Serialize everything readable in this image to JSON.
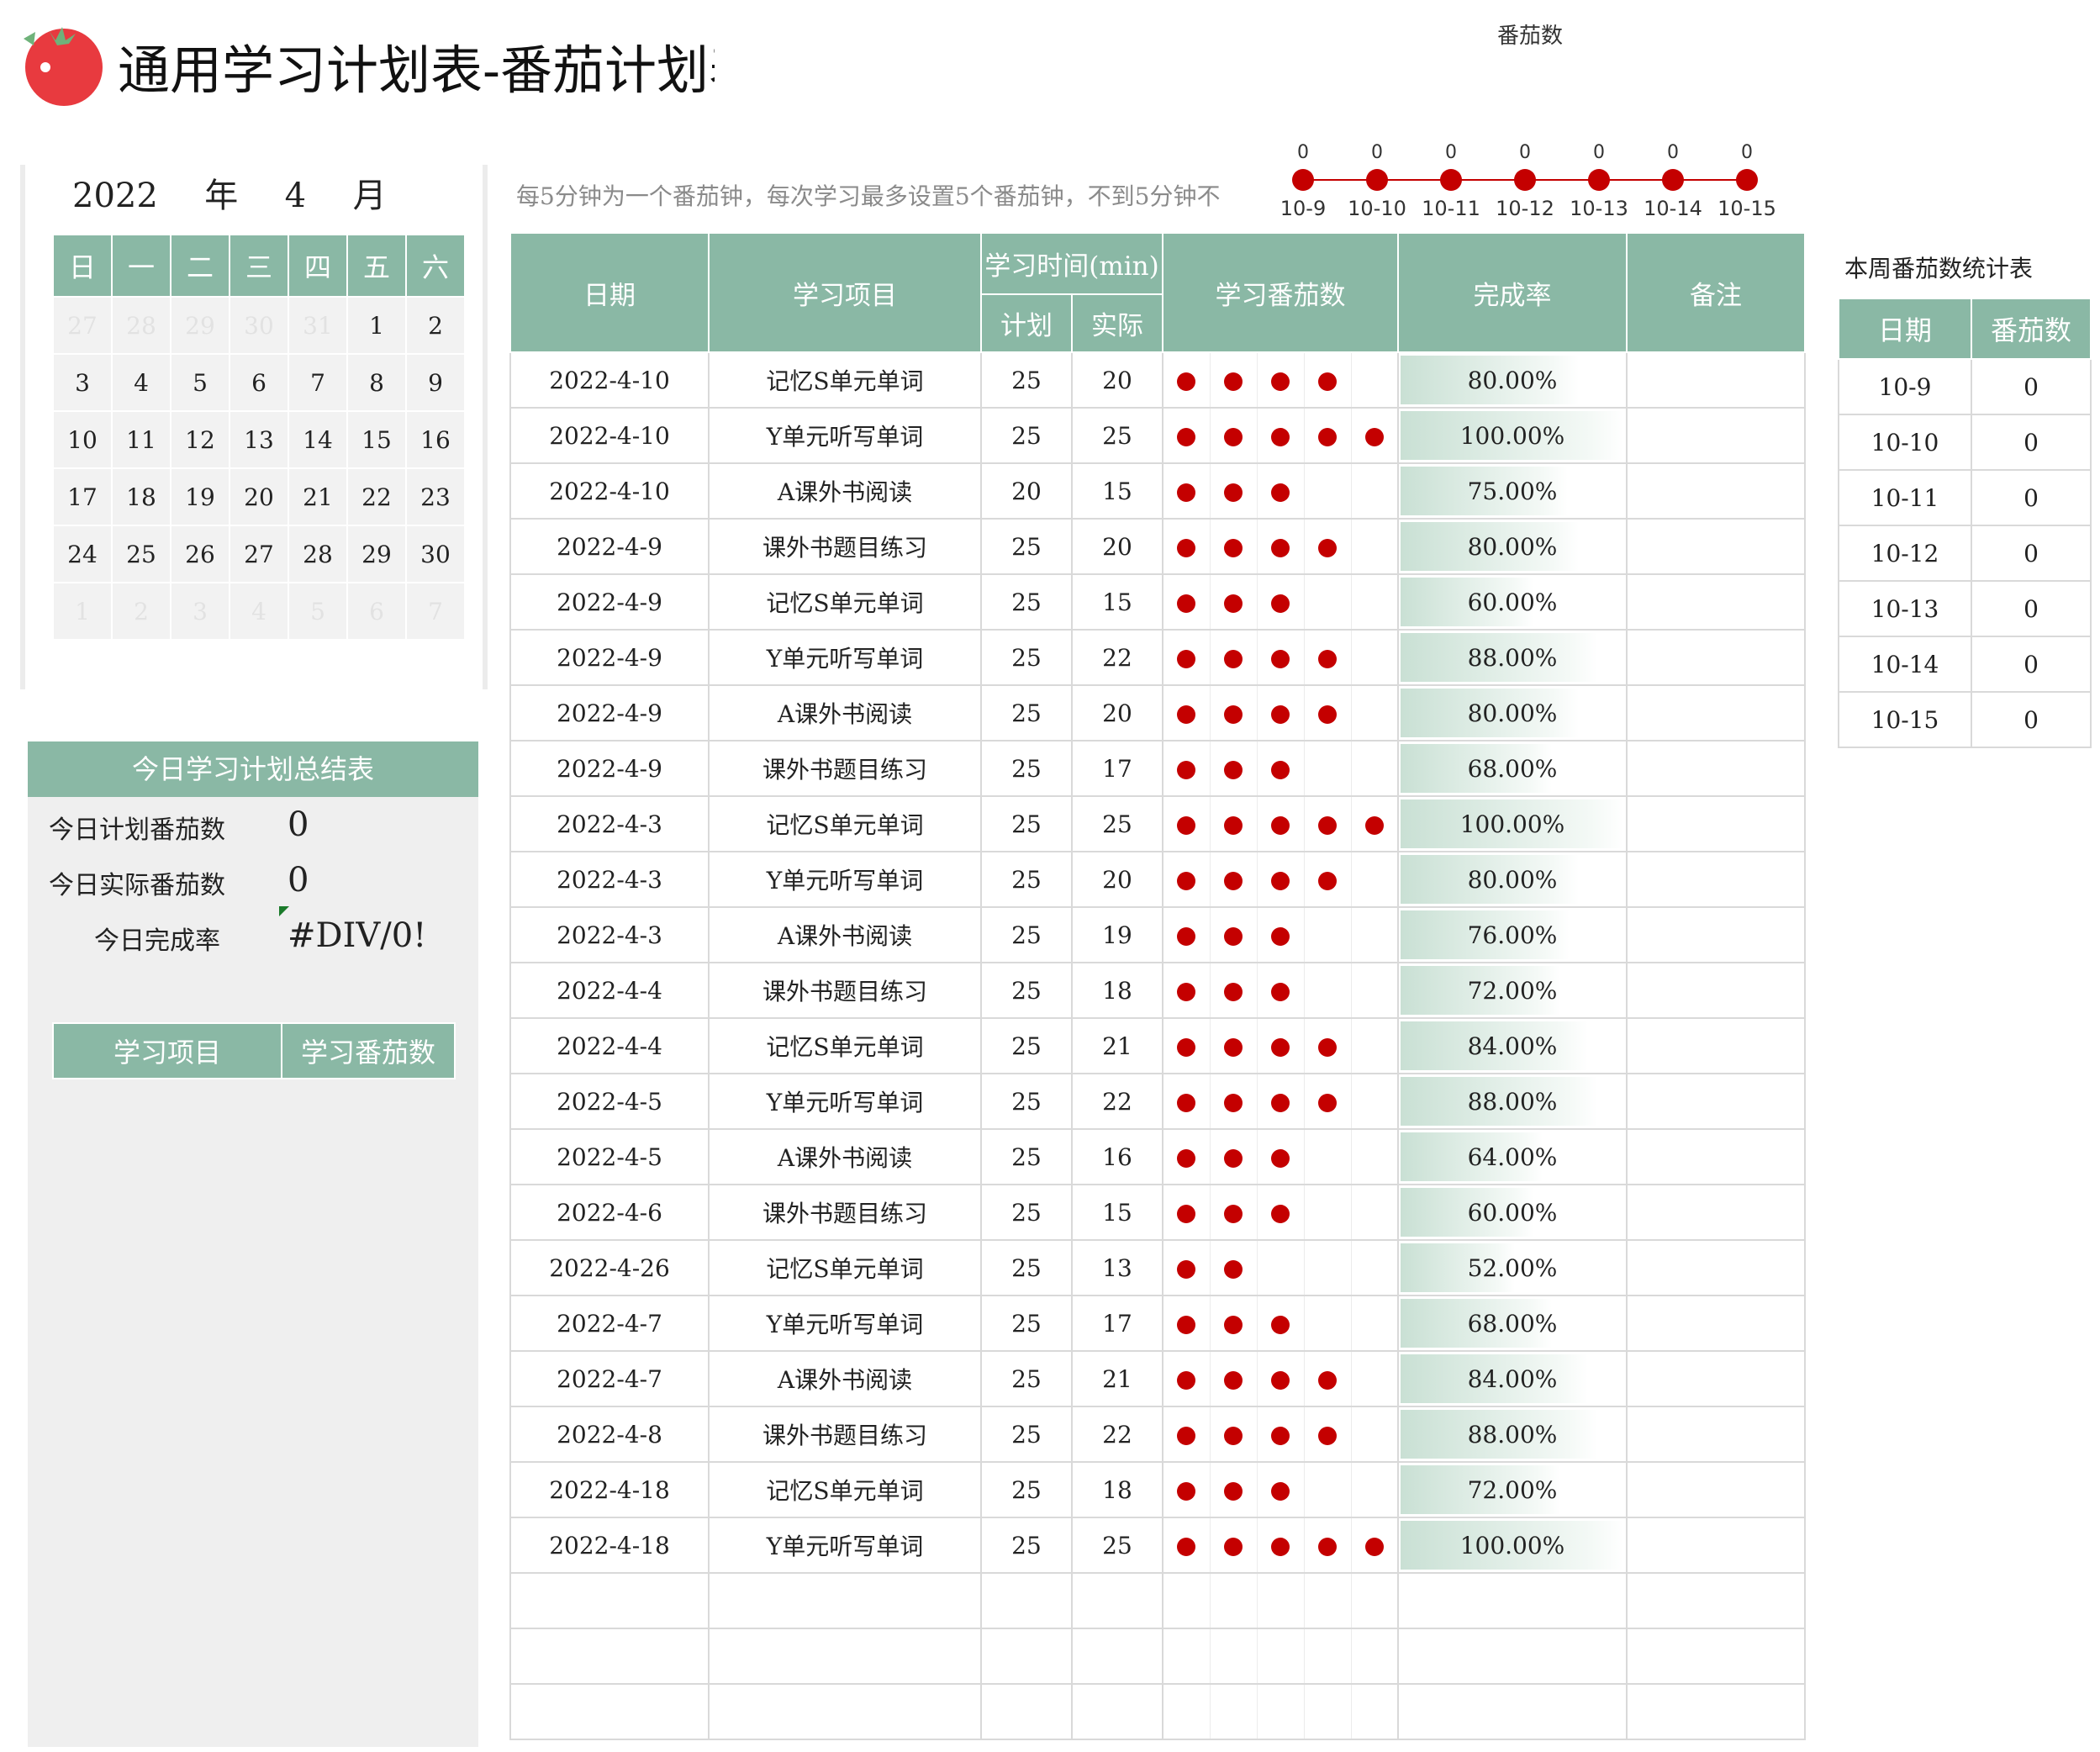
{
  "title": "通用学习计划表-番茄计划表",
  "note": "每5分钟为一个番茄钟，每次学习最多设置5个番茄钟，不到5分钟不",
  "colors": {
    "header_green": "#8ab8a5",
    "tomato_red": "#c40000",
    "logo_red": "#e83a3f",
    "leaf_green": "#6fb27a"
  },
  "chart_data": {
    "type": "line",
    "title": "番茄数",
    "categories": [
      "10-9",
      "10-10",
      "10-11",
      "10-12",
      "10-13",
      "10-14",
      "10-15"
    ],
    "values": [
      0,
      0,
      0,
      0,
      0,
      0,
      0
    ],
    "value_labels": [
      "0",
      "0",
      "0",
      "0",
      "0",
      "0",
      "0"
    ],
    "marker": "filled-circle",
    "axes_visible": false,
    "grid": false
  },
  "calendar": {
    "year": "2022",
    "year_label": "年",
    "month": "4",
    "month_label": "月",
    "weekdays": [
      "日",
      "一",
      "二",
      "三",
      "四",
      "五",
      "六"
    ],
    "weeks": [
      [
        "27",
        "28",
        "29",
        "30",
        "31",
        "1",
        "2"
      ],
      [
        "3",
        "4",
        "5",
        "6",
        "7",
        "8",
        "9"
      ],
      [
        "10",
        "11",
        "12",
        "13",
        "14",
        "15",
        "16"
      ],
      [
        "17",
        "18",
        "19",
        "20",
        "21",
        "22",
        "23"
      ],
      [
        "24",
        "25",
        "26",
        "27",
        "28",
        "29",
        "30"
      ],
      [
        "1",
        "2",
        "3",
        "4",
        "5",
        "6",
        "7"
      ]
    ],
    "dim_cells": [
      [
        0,
        0
      ],
      [
        0,
        1
      ],
      [
        0,
        2
      ],
      [
        0,
        3
      ],
      [
        0,
        4
      ],
      [
        5,
        0
      ],
      [
        5,
        1
      ],
      [
        5,
        2
      ],
      [
        5,
        3
      ],
      [
        5,
        4
      ],
      [
        5,
        5
      ],
      [
        5,
        6
      ]
    ]
  },
  "summary": {
    "title": "今日学习计划总结表",
    "planned_label": "今日计划番茄数",
    "planned_value": "0",
    "actual_label": "今日实际番茄数",
    "actual_value": "0",
    "rate_label": "今日完成率",
    "rate_value": "#DIV/0!",
    "table_headers": [
      "学习项目",
      "学习番茄数"
    ]
  },
  "main_table": {
    "headers": {
      "date": "日期",
      "project": "学习项目",
      "time": "学习时间(min)",
      "plan": "计划",
      "actual": "实际",
      "tomatoes": "学习番茄数",
      "rate": "完成率",
      "remark": "备注"
    },
    "rows": [
      {
        "date": "2022-4-10",
        "project": "记忆S单元单词",
        "plan": "25",
        "actual": "20",
        "tomatoes": 4,
        "rate": "80.00%",
        "rate_value": 0.8
      },
      {
        "date": "2022-4-10",
        "project": "Y单元听写单词",
        "plan": "25",
        "actual": "25",
        "tomatoes": 5,
        "rate": "100.00%",
        "rate_value": 1.0
      },
      {
        "date": "2022-4-10",
        "project": "A课外书阅读",
        "plan": "20",
        "actual": "15",
        "tomatoes": 3,
        "rate": "75.00%",
        "rate_value": 0.75
      },
      {
        "date": "2022-4-9",
        "project": "课外书题目练习",
        "plan": "25",
        "actual": "20",
        "tomatoes": 4,
        "rate": "80.00%",
        "rate_value": 0.8
      },
      {
        "date": "2022-4-9",
        "project": "记忆S单元单词",
        "plan": "25",
        "actual": "15",
        "tomatoes": 3,
        "rate": "60.00%",
        "rate_value": 0.6
      },
      {
        "date": "2022-4-9",
        "project": "Y单元听写单词",
        "plan": "25",
        "actual": "22",
        "tomatoes": 4,
        "rate": "88.00%",
        "rate_value": 0.88
      },
      {
        "date": "2022-4-9",
        "project": "A课外书阅读",
        "plan": "25",
        "actual": "20",
        "tomatoes": 4,
        "rate": "80.00%",
        "rate_value": 0.8
      },
      {
        "date": "2022-4-9",
        "project": "课外书题目练习",
        "plan": "25",
        "actual": "17",
        "tomatoes": 3,
        "rate": "68.00%",
        "rate_value": 0.68
      },
      {
        "date": "2022-4-3",
        "project": "记忆S单元单词",
        "plan": "25",
        "actual": "25",
        "tomatoes": 5,
        "rate": "100.00%",
        "rate_value": 1.0
      },
      {
        "date": "2022-4-3",
        "project": "Y单元听写单词",
        "plan": "25",
        "actual": "20",
        "tomatoes": 4,
        "rate": "80.00%",
        "rate_value": 0.8
      },
      {
        "date": "2022-4-3",
        "project": "A课外书阅读",
        "plan": "25",
        "actual": "19",
        "tomatoes": 3,
        "rate": "76.00%",
        "rate_value": 0.76
      },
      {
        "date": "2022-4-4",
        "project": "课外书题目练习",
        "plan": "25",
        "actual": "18",
        "tomatoes": 3,
        "rate": "72.00%",
        "rate_value": 0.72
      },
      {
        "date": "2022-4-4",
        "project": "记忆S单元单词",
        "plan": "25",
        "actual": "21",
        "tomatoes": 4,
        "rate": "84.00%",
        "rate_value": 0.84
      },
      {
        "date": "2022-4-5",
        "project": "Y单元听写单词",
        "plan": "25",
        "actual": "22",
        "tomatoes": 4,
        "rate": "88.00%",
        "rate_value": 0.88
      },
      {
        "date": "2022-4-5",
        "project": "A课外书阅读",
        "plan": "25",
        "actual": "16",
        "tomatoes": 3,
        "rate": "64.00%",
        "rate_value": 0.64
      },
      {
        "date": "2022-4-6",
        "project": "课外书题目练习",
        "plan": "25",
        "actual": "15",
        "tomatoes": 3,
        "rate": "60.00%",
        "rate_value": 0.6
      },
      {
        "date": "2022-4-26",
        "project": "记忆S单元单词",
        "plan": "25",
        "actual": "13",
        "tomatoes": 2,
        "rate": "52.00%",
        "rate_value": 0.52
      },
      {
        "date": "2022-4-7",
        "project": "Y单元听写单词",
        "plan": "25",
        "actual": "17",
        "tomatoes": 3,
        "rate": "68.00%",
        "rate_value": 0.68
      },
      {
        "date": "2022-4-7",
        "project": "A课外书阅读",
        "plan": "25",
        "actual": "21",
        "tomatoes": 4,
        "rate": "84.00%",
        "rate_value": 0.84
      },
      {
        "date": "2022-4-8",
        "project": "课外书题目练习",
        "plan": "25",
        "actual": "22",
        "tomatoes": 4,
        "rate": "88.00%",
        "rate_value": 0.88
      },
      {
        "date": "2022-4-18",
        "project": "记忆S单元单词",
        "plan": "25",
        "actual": "18",
        "tomatoes": 3,
        "rate": "72.00%",
        "rate_value": 0.72
      },
      {
        "date": "2022-4-18",
        "project": "Y单元听写单词",
        "plan": "25",
        "actual": "25",
        "tomatoes": 5,
        "rate": "100.00%",
        "rate_value": 1.0
      }
    ],
    "empty_rows": 3
  },
  "weekly": {
    "title": "本周番茄数统计表",
    "headers": [
      "日期",
      "番茄数"
    ],
    "rows": [
      {
        "date": "10-9",
        "count": "0"
      },
      {
        "date": "10-10",
        "count": "0"
      },
      {
        "date": "10-11",
        "count": "0"
      },
      {
        "date": "10-12",
        "count": "0"
      },
      {
        "date": "10-13",
        "count": "0"
      },
      {
        "date": "10-14",
        "count": "0"
      },
      {
        "date": "10-15",
        "count": "0"
      }
    ]
  }
}
